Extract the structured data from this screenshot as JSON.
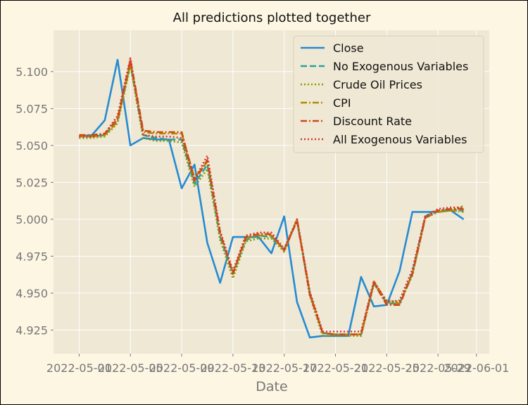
{
  "window": {
    "background": "#1f1f1f",
    "page_bg": "#fdf6e3",
    "plot_bg": "#eee8d5",
    "grid_color": "#ffffff"
  },
  "chart_data": {
    "type": "line",
    "title": "All predictions plotted together",
    "xlabel": "Date",
    "ylabel": "",
    "grid": true,
    "legend_position": "top-right",
    "x_range": [
      "2022-04-29",
      "2022-06-02"
    ],
    "ylim": [
      4.909,
      5.128
    ],
    "x_ticks": [
      {
        "date": "2022-05-01",
        "label": "2022-05-01"
      },
      {
        "date": "2022-05-05",
        "label": "2022-05-05"
      },
      {
        "date": "2022-05-09",
        "label": "2022-05-09"
      },
      {
        "date": "2022-05-13",
        "label": "2022-05-13"
      },
      {
        "date": "2022-05-17",
        "label": "2022-05-17"
      },
      {
        "date": "2022-05-21",
        "label": "2022-05-21"
      },
      {
        "date": "2022-05-25",
        "label": "2022-05-25"
      },
      {
        "date": "2022-05-29",
        "label": "2022-05-29"
      },
      {
        "date": "2022-06-01",
        "label": "2022-06-01"
      }
    ],
    "y_ticks": [
      {
        "value": 4.925,
        "label": "4.925"
      },
      {
        "value": 4.95,
        "label": "4.950"
      },
      {
        "value": 4.975,
        "label": "4.975"
      },
      {
        "value": 5.0,
        "label": "5.000"
      },
      {
        "value": 5.025,
        "label": "5.025"
      },
      {
        "value": 5.05,
        "label": "5.050"
      },
      {
        "value": 5.075,
        "label": "5.075"
      },
      {
        "value": 5.1,
        "label": "5.100"
      }
    ],
    "x": [
      "2022-05-01",
      "2022-05-02",
      "2022-05-03",
      "2022-05-04",
      "2022-05-05",
      "2022-05-06",
      "2022-05-07",
      "2022-05-08",
      "2022-05-09",
      "2022-05-10",
      "2022-05-11",
      "2022-05-12",
      "2022-05-13",
      "2022-05-14",
      "2022-05-15",
      "2022-05-16",
      "2022-05-17",
      "2022-05-18",
      "2022-05-19",
      "2022-05-20",
      "2022-05-21",
      "2022-05-22",
      "2022-05-23",
      "2022-05-24",
      "2022-05-25",
      "2022-05-26",
      "2022-05-27",
      "2022-05-28",
      "2022-05-29",
      "2022-05-30",
      "2022-05-31"
    ],
    "series": [
      {
        "name": "Close",
        "color": "#268bd2",
        "dash": "solid",
        "values": [
          5.056,
          5.057,
          5.067,
          5.108,
          5.05,
          5.055,
          5.054,
          5.054,
          5.021,
          5.037,
          4.984,
          4.957,
          4.988,
          4.988,
          4.988,
          4.977,
          5.002,
          4.944,
          4.92,
          4.921,
          4.921,
          4.921,
          4.961,
          4.941,
          4.942,
          4.965,
          5.005,
          5.005,
          5.005,
          5.006,
          5.0
        ]
      },
      {
        "name": "No Exogenous Variables",
        "color": "#2aa198",
        "dash": "dashed",
        "values": [
          5.056,
          5.056,
          5.057,
          5.067,
          5.105,
          5.057,
          5.055,
          5.054,
          5.054,
          5.024,
          5.037,
          4.988,
          4.963,
          4.986,
          4.989,
          4.988,
          4.98,
          4.999,
          4.95,
          4.923,
          4.922,
          4.922,
          4.922,
          4.957,
          4.943,
          4.943,
          4.964,
          5.002,
          5.006,
          5.006,
          5.006
        ]
      },
      {
        "name": "Crude Oil Prices",
        "color": "#859900",
        "dash": "dotted",
        "values": [
          5.055,
          5.055,
          5.056,
          5.065,
          5.104,
          5.055,
          5.053,
          5.053,
          5.052,
          5.022,
          5.034,
          4.986,
          4.96,
          4.985,
          4.987,
          4.987,
          4.978,
          5.0,
          4.948,
          4.921,
          4.921,
          4.921,
          4.921,
          4.956,
          4.945,
          4.944,
          4.962,
          5.001,
          5.005,
          5.006,
          5.009
        ]
      },
      {
        "name": "CPI",
        "color": "#b58900",
        "dash": "dashdot",
        "values": [
          5.056,
          5.056,
          5.057,
          5.066,
          5.106,
          5.059,
          5.058,
          5.058,
          5.058,
          5.028,
          5.039,
          4.99,
          4.964,
          4.987,
          4.989,
          4.989,
          4.979,
          5.0,
          4.95,
          4.923,
          4.922,
          4.922,
          4.922,
          4.958,
          4.944,
          4.943,
          4.963,
          5.001,
          5.005,
          5.006,
          5.005
        ]
      },
      {
        "name": "Discount Rate",
        "color": "#cb4b16",
        "dash": "dashdot",
        "values": [
          5.057,
          5.057,
          5.058,
          5.068,
          5.108,
          5.06,
          5.059,
          5.059,
          5.059,
          5.026,
          5.04,
          4.991,
          4.963,
          4.988,
          4.99,
          4.99,
          4.979,
          4.999,
          4.949,
          4.923,
          4.922,
          4.922,
          4.922,
          4.957,
          4.942,
          4.942,
          4.963,
          5.001,
          5.006,
          5.007,
          5.007
        ]
      },
      {
        "name": "All Exogenous Variables",
        "color": "#dc322f",
        "dash": "dotted",
        "values": [
          5.056,
          5.056,
          5.058,
          5.07,
          5.109,
          5.057,
          5.056,
          5.056,
          5.055,
          5.027,
          5.043,
          4.992,
          4.965,
          4.989,
          4.991,
          4.991,
          4.98,
          5.0,
          4.951,
          4.924,
          4.924,
          4.924,
          4.924,
          4.958,
          4.944,
          4.945,
          4.966,
          5.002,
          5.007,
          5.008,
          5.008
        ]
      }
    ]
  }
}
